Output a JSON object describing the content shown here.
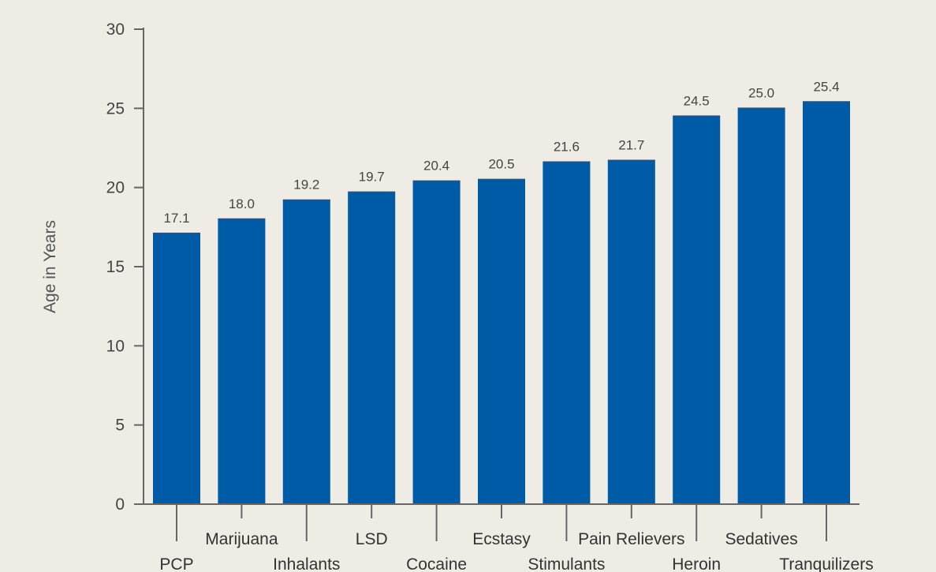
{
  "chart_data": {
    "type": "bar",
    "title": "",
    "xlabel": "",
    "ylabel": "Age in Years",
    "ylim": [
      0,
      30
    ],
    "yticks": [
      0,
      5,
      10,
      15,
      20,
      25,
      30
    ],
    "categories": [
      "PCP",
      "Marijuana",
      "Inhalants",
      "LSD",
      "Cocaine",
      "Ecstasy",
      "Stimulants",
      "Pain Relievers",
      "Heroin",
      "Sedatives",
      "Tranquilizers"
    ],
    "values": [
      17.1,
      18.0,
      19.2,
      19.7,
      20.4,
      20.5,
      21.6,
      21.7,
      24.5,
      25.0,
      25.4
    ],
    "value_labels": [
      "17.1",
      "18.0",
      "19.2",
      "19.7",
      "20.4",
      "20.5",
      "21.6",
      "21.7",
      "24.5",
      "25.0",
      "25.4"
    ],
    "bar_color": "#005ba6",
    "axis_color": "#666666",
    "grid": false
  }
}
